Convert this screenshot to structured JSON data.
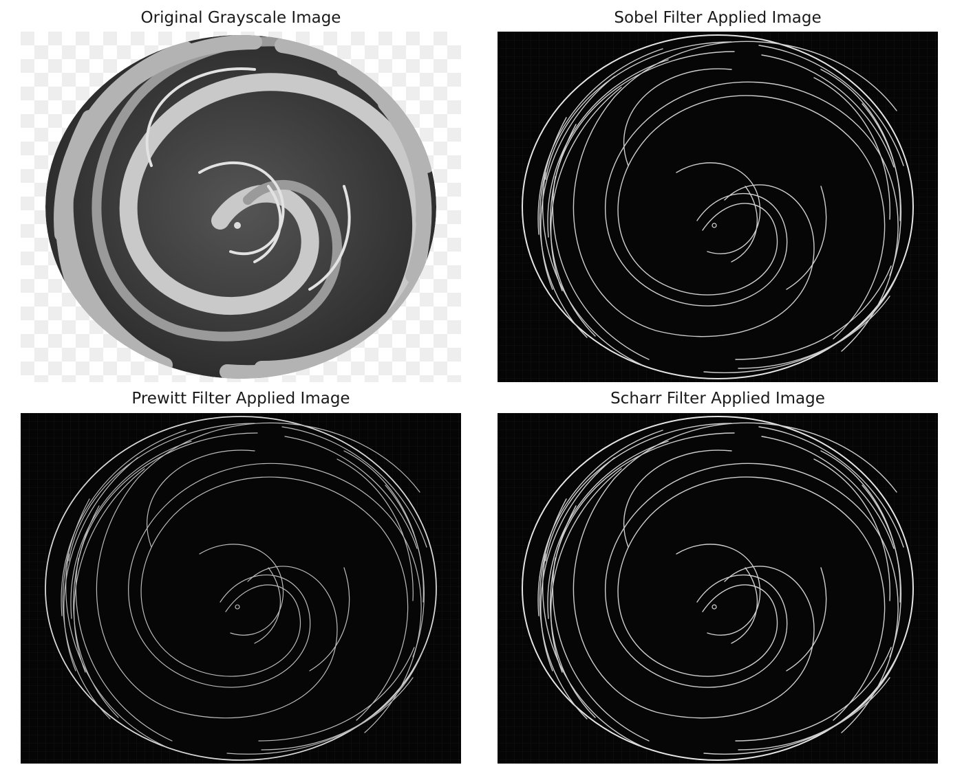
{
  "figure": {
    "panels": [
      {
        "title": "Original Grayscale Image"
      },
      {
        "title": "Sobel Filter Applied Image"
      },
      {
        "title": "Prewitt Filter Applied Image"
      },
      {
        "title": "Scharr Filter Applied Image"
      }
    ]
  },
  "colors": {
    "background": "#ffffff",
    "edge_background": "#050505",
    "edge_line": "#e6e6e6",
    "checker_light": "#ffffff",
    "checker_dark": "#eeeeee",
    "candy_dark": "#3a3a3a",
    "candy_light": "#c8c8c8"
  }
}
